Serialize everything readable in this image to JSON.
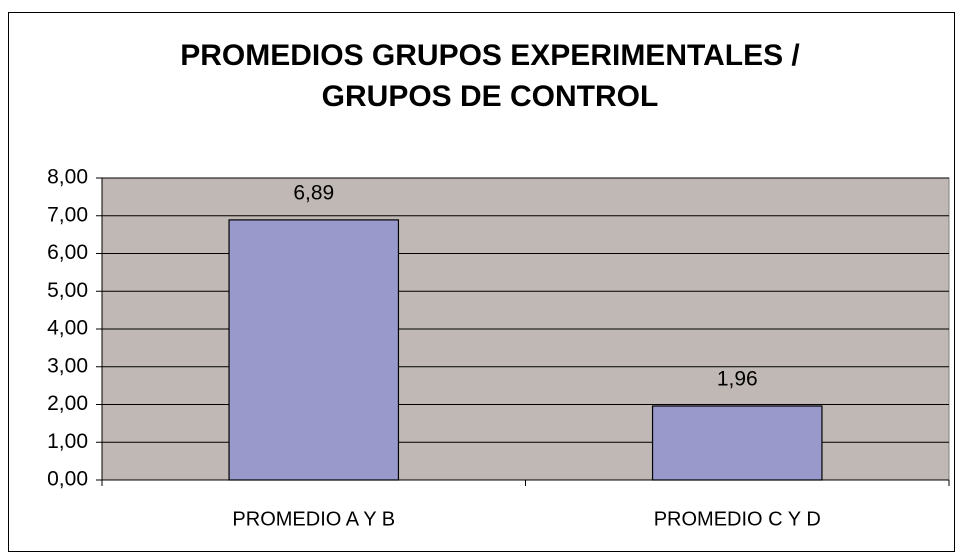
{
  "chart_data": {
    "type": "bar",
    "title": [
      "PROMEDIOS GRUPOS EXPERIMENTALES /",
      "GRUPOS DE CONTROL"
    ],
    "categories": [
      "PROMEDIO A Y B",
      "PROMEDIO C Y D"
    ],
    "values": [
      6.89,
      1.96
    ],
    "value_labels": [
      "6,89",
      "1,96"
    ],
    "color": "#9999cc",
    "ylim": [
      0,
      8
    ],
    "yticks": [
      {
        "value": 0,
        "label": "0,00"
      },
      {
        "value": 1,
        "label": "1,00"
      },
      {
        "value": 2,
        "label": "2,00"
      },
      {
        "value": 3,
        "label": "3,00"
      },
      {
        "value": 4,
        "label": "4,00"
      },
      {
        "value": 5,
        "label": "5,00"
      },
      {
        "value": 6,
        "label": "6,00"
      },
      {
        "value": 7,
        "label": "7,00"
      },
      {
        "value": 8,
        "label": "8,00"
      }
    ],
    "grid": true
  }
}
